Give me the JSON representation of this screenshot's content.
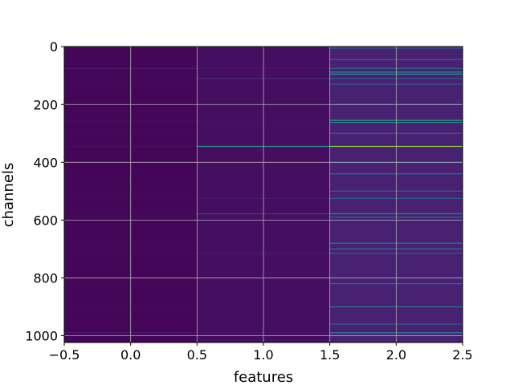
{
  "chart_data": {
    "type": "heatmap",
    "title": "",
    "xlabel": "features",
    "ylabel": "channels",
    "xlim": [
      -0.5,
      2.5
    ],
    "ylim": [
      1023.5,
      -0.5
    ],
    "x_ticks": [
      -0.5,
      0.0,
      0.5,
      1.0,
      1.5,
      2.0,
      2.5
    ],
    "x_tick_labels": [
      "−0.5",
      "0.0",
      "0.5",
      "1.0",
      "1.5",
      "2.0",
      "2.5"
    ],
    "y_ticks": [
      0,
      200,
      400,
      600,
      800,
      1000
    ],
    "y_tick_labels": [
      "0",
      "200",
      "400",
      "600",
      "800",
      "1000"
    ],
    "grid": true,
    "colormap": "viridis",
    "n_rows": 1024,
    "columns": [
      0,
      1,
      2
    ],
    "column_base_level": [
      0.02,
      0.05,
      0.12
    ],
    "highlighted_rows": [
      {
        "row": 5,
        "values": [
          0.03,
          0.05,
          0.3
        ]
      },
      {
        "row": 45,
        "values": [
          0.03,
          0.05,
          0.3
        ]
      },
      {
        "row": 75,
        "values": [
          0.12,
          0.08,
          0.35
        ]
      },
      {
        "row": 88,
        "values": [
          0.04,
          0.05,
          0.5
        ]
      },
      {
        "row": 95,
        "values": [
          0.04,
          0.06,
          0.55
        ]
      },
      {
        "row": 110,
        "values": [
          0.04,
          0.15,
          0.3
        ]
      },
      {
        "row": 130,
        "values": [
          0.03,
          0.05,
          0.3
        ]
      },
      {
        "row": 200,
        "values": [
          0.03,
          0.05,
          0.35
        ]
      },
      {
        "row": 255,
        "values": [
          0.04,
          0.06,
          0.6
        ]
      },
      {
        "row": 262,
        "values": [
          0.04,
          0.06,
          0.5
        ]
      },
      {
        "row": 300,
        "values": [
          0.03,
          0.05,
          0.3
        ]
      },
      {
        "row": 345,
        "values": [
          0.05,
          0.55,
          0.85
        ]
      },
      {
        "row": 400,
        "values": [
          0.03,
          0.05,
          0.35
        ]
      },
      {
        "row": 440,
        "values": [
          0.03,
          0.05,
          0.4
        ]
      },
      {
        "row": 500,
        "values": [
          0.03,
          0.05,
          0.3
        ]
      },
      {
        "row": 525,
        "values": [
          0.03,
          0.1,
          0.3
        ]
      },
      {
        "row": 578,
        "values": [
          0.03,
          0.2,
          0.45
        ]
      },
      {
        "row": 590,
        "values": [
          0.03,
          0.05,
          0.35
        ]
      },
      {
        "row": 680,
        "values": [
          0.03,
          0.05,
          0.4
        ]
      },
      {
        "row": 700,
        "values": [
          0.03,
          0.05,
          0.4
        ]
      },
      {
        "row": 715,
        "values": [
          0.03,
          0.12,
          0.3
        ]
      },
      {
        "row": 820,
        "values": [
          0.03,
          0.05,
          0.35
        ]
      },
      {
        "row": 900,
        "values": [
          0.03,
          0.05,
          0.4
        ]
      },
      {
        "row": 960,
        "values": [
          0.03,
          0.05,
          0.3
        ]
      },
      {
        "row": 990,
        "values": [
          0.1,
          0.08,
          0.5
        ]
      },
      {
        "row": 1000,
        "values": [
          0.03,
          0.05,
          0.3
        ]
      }
    ]
  }
}
